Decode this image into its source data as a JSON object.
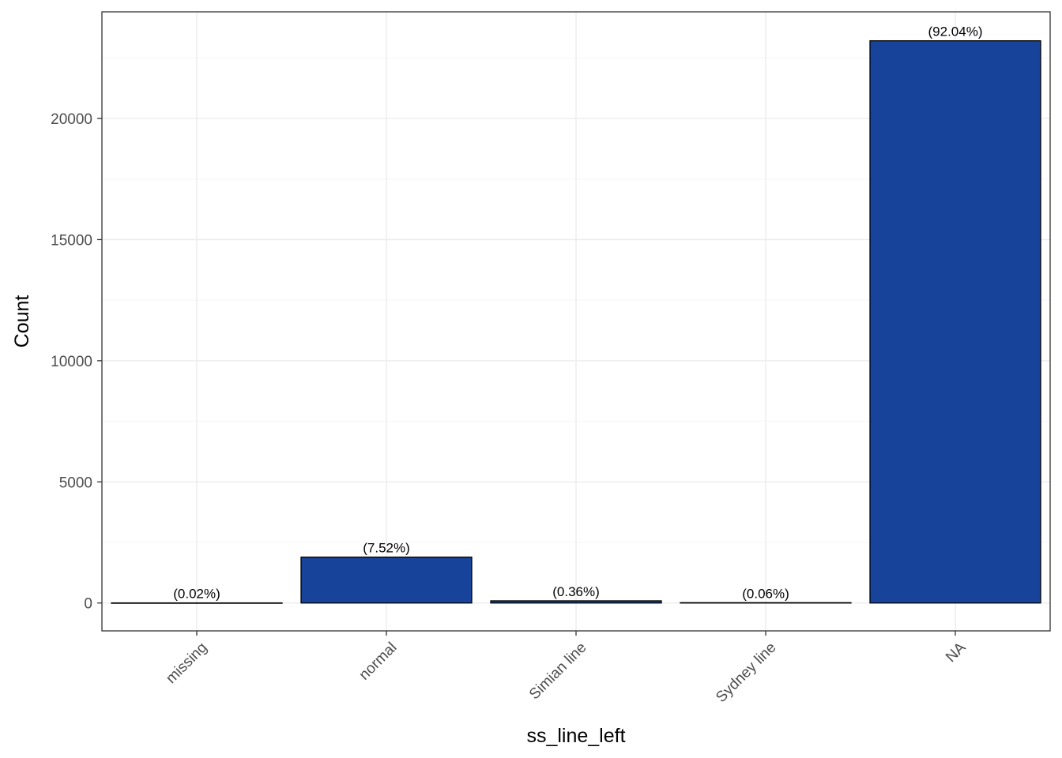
{
  "chart_data": {
    "type": "bar",
    "title": "",
    "xlabel": "ss_line_left",
    "ylabel": "Count",
    "categories": [
      "missing",
      "normal",
      "Simian line",
      "Sydney line",
      "NA"
    ],
    "values": [
      5,
      1896,
      90,
      15,
      23206
    ],
    "data_labels": [
      "(0.02%)",
      "(7.52%)",
      "(0.36%)",
      "(0.06%)",
      "(92.04%)"
    ],
    "ylim": [
      -1150,
      24400
    ],
    "yticks": [
      0,
      5000,
      10000,
      15000,
      20000
    ],
    "ytick_labels": [
      "0",
      "5000",
      "10000",
      "15000",
      "20000"
    ],
    "grid": true,
    "legend": "none",
    "colors": {
      "bar_fill": "#17449a",
      "bar_stroke": "#000000",
      "grid_major": "#ebebeb",
      "grid_minor": "#f5f5f5",
      "panel_border": "#333333"
    }
  }
}
